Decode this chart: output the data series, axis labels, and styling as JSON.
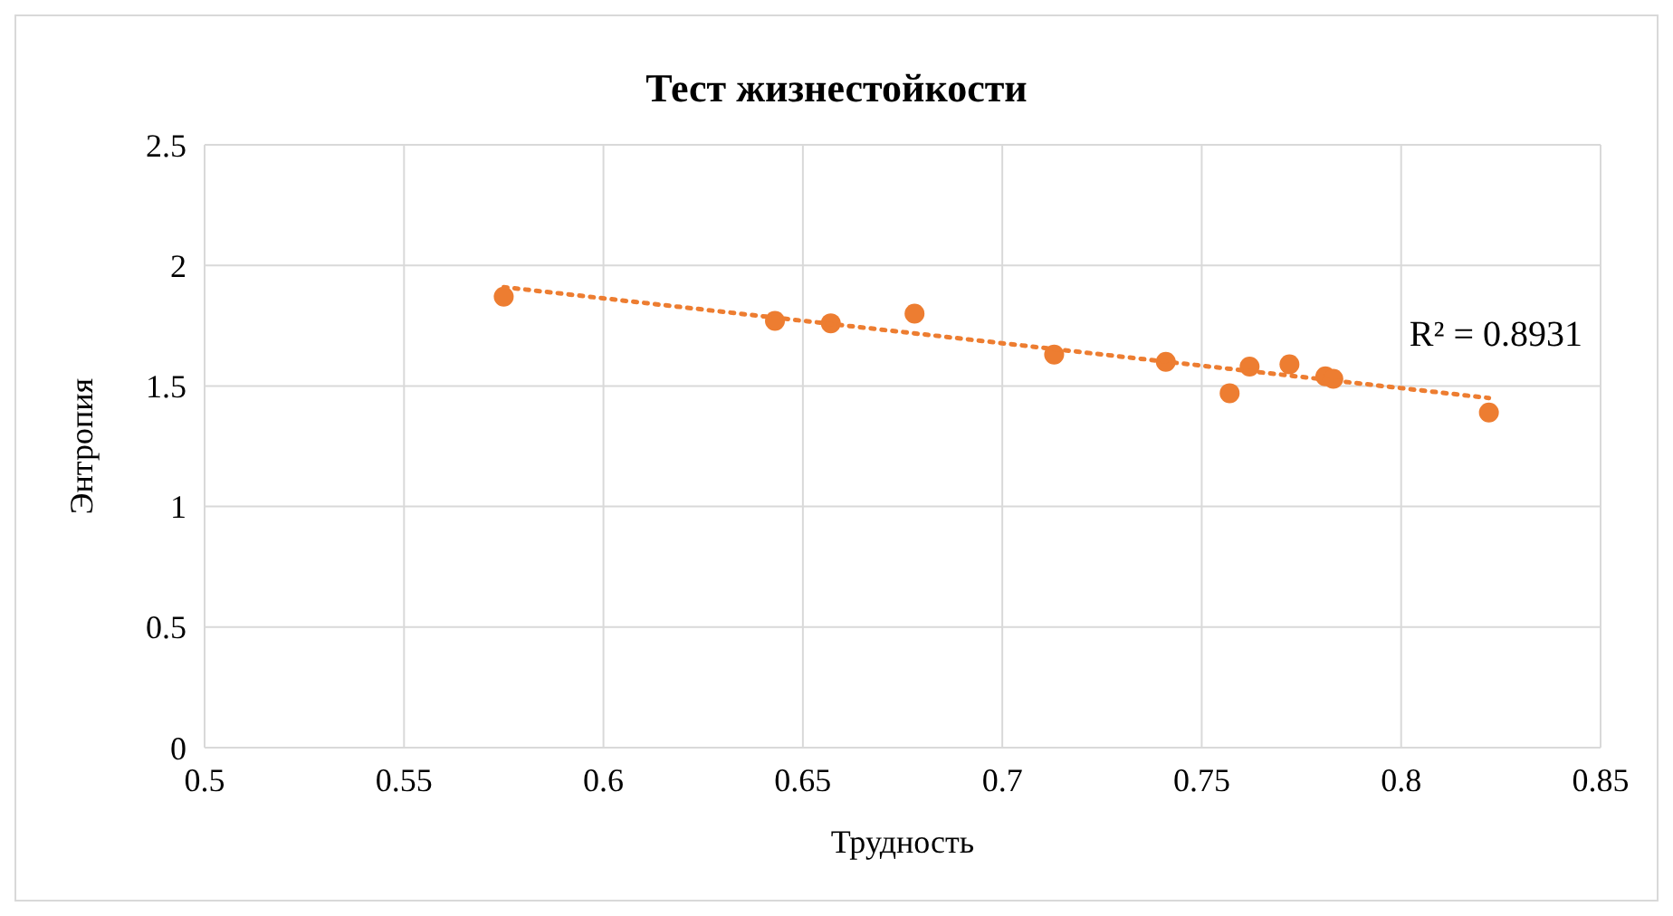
{
  "chart_data": {
    "type": "scatter",
    "title": "Тест жизнестойкости",
    "xlabel": "Трудность",
    "ylabel": "Энтропия",
    "xlim": [
      0.5,
      0.85
    ],
    "xticks": [
      0.5,
      0.55,
      0.6,
      0.65,
      0.7,
      0.75,
      0.8,
      0.85
    ],
    "ylim": [
      0,
      2.5
    ],
    "yticks": [
      0,
      0.5,
      1,
      1.5,
      2,
      2.5
    ],
    "grid": true,
    "series": [
      {
        "marker": "circle",
        "color": "#ed7d31",
        "x": [
          0.575,
          0.643,
          0.657,
          0.678,
          0.713,
          0.741,
          0.757,
          0.762,
          0.772,
          0.781,
          0.783,
          0.822
        ],
        "values": [
          1.87,
          1.77,
          1.76,
          1.8,
          1.63,
          1.6,
          1.47,
          1.58,
          1.59,
          1.54,
          1.53,
          1.39
        ]
      },
      {
        "type": "line",
        "marker": "none",
        "color": "#ed7d31",
        "line_style": "dotted",
        "x": [
          0.575,
          0.822
        ],
        "values": [
          1.91,
          1.45
        ]
      }
    ],
    "annotations": [
      "R² = 0.8931"
    ]
  }
}
